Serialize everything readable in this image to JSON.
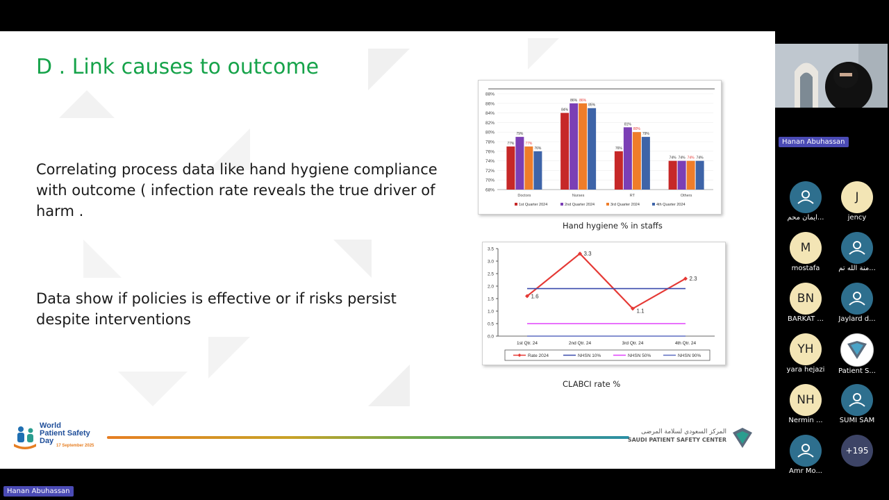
{
  "slide": {
    "title": "D . Link causes to outcome",
    "paragraph1": "Correlating process data like hand hygiene compliance with outcome ( infection rate reveals the true driver of harm .",
    "paragraph2": "Data show if policies is effective or if risks persist despite interventions",
    "caption1": "Hand hygiene % in staffs",
    "caption2": "CLABCI rate %",
    "logo_left": {
      "line1": "World",
      "line2": "Patient Safety",
      "line3": "Day",
      "date": "17 September 2025"
    },
    "logo_right": {
      "arabic": "المركز السعودي لسلامة المرضى",
      "english": "SAUDI PATIENT SAFETY CENTER"
    }
  },
  "chart_data": [
    {
      "type": "bar",
      "categories": [
        "Doctors",
        "Nurses",
        "RT",
        "Others"
      ],
      "series": [
        {
          "name": "1st Quarter 2024",
          "values": [
            77,
            84,
            76,
            74
          ],
          "color": "#c62828"
        },
        {
          "name": "2nd Quarter 2024",
          "values": [
            79,
            86,
            81,
            74
          ],
          "color": "#7b3fb5"
        },
        {
          "name": "3rd Quarter 2024",
          "values": [
            77,
            86,
            80,
            74
          ],
          "color": "#ef7d2a"
        },
        {
          "name": "4th Quarter 2024",
          "values": [
            76,
            85,
            79,
            74
          ],
          "color": "#3e64a8"
        }
      ],
      "data_labels": [
        [
          "77%",
          "84%",
          "76%",
          "74%"
        ],
        [
          "79%",
          "86%",
          "81%",
          "74%"
        ],
        [
          "77%",
          "86%",
          "80%",
          "74%"
        ],
        [
          "76%",
          "85%",
          "79%",
          "74%"
        ]
      ],
      "yticks": [
        "68%",
        "70%",
        "72%",
        "74%",
        "76%",
        "78%",
        "80%",
        "82%",
        "84%",
        "86%",
        "88%"
      ],
      "ylim": [
        68,
        88
      ],
      "legend": "bottom"
    },
    {
      "type": "line",
      "categories": [
        "1st Qtr. 24",
        "2nd Qtr. 24",
        "3rd Qtr. 24",
        "4th Qtr. 24"
      ],
      "series": [
        {
          "name": "Rate 2024",
          "values": [
            1.6,
            3.3,
            1.1,
            2.3
          ],
          "color": "#e53935",
          "labels": [
            "1.6",
            "3.3",
            "1.1",
            "2.3"
          ]
        },
        {
          "name": "NHSN 10%",
          "values": [
            1.9,
            1.9,
            1.9,
            1.9
          ],
          "color": "#3949ab"
        },
        {
          "name": "NHSN 50%",
          "values": [
            0.5,
            0.5,
            0.5,
            0.5
          ],
          "color": "#e040fb"
        },
        {
          "name": "NHSN 90%",
          "values": [
            0.0,
            0.0,
            0.0,
            0.0
          ],
          "color": "#5c6bc0"
        }
      ],
      "yticks": [
        "0.0",
        "0.5",
        "1.0",
        "1.5",
        "2.0",
        "2.5",
        "3.0",
        "3.5"
      ],
      "ylim": [
        0,
        3.5
      ],
      "legend": "bottom"
    }
  ],
  "sidebar": {
    "speaker": "Hanan Abuhassan",
    "bottom_tag": "Hanan Abuhassan",
    "participants": [
      {
        "initials": "",
        "name": "ايمان محم...",
        "bg": "#2e6f8e",
        "icon": "person-icon"
      },
      {
        "initials": "J",
        "name": "jency",
        "bg": "#f3e5b5"
      },
      {
        "initials": "M",
        "name": "mostafa",
        "bg": "#f3e5b5"
      },
      {
        "initials": "",
        "name": "منة الله تم...",
        "bg": "#2e6f8e",
        "icon": "person-icon"
      },
      {
        "initials": "BN",
        "name": "BARKAT ...",
        "bg": "#f3e5b5"
      },
      {
        "initials": "",
        "name": "Jaylard d...",
        "bg": "#2e6f8e",
        "icon": "person-icon"
      },
      {
        "initials": "YH",
        "name": "yara hejazi",
        "bg": "#f3e5b5"
      },
      {
        "initials": "",
        "name": "Patient S...",
        "bg": "#ffffff",
        "icon": "logo-icon"
      },
      {
        "initials": "NH",
        "name": "Nermin ...",
        "bg": "#f3e5b5"
      },
      {
        "initials": "",
        "name": "SUMI SAM",
        "bg": "#2e6f8e",
        "icon": "person-icon"
      },
      {
        "initials": "",
        "name": "Amr Mo...",
        "bg": "#2e6f8e",
        "icon": "person-icon"
      },
      {
        "initials": "+195",
        "name": "",
        "bg": "#3d4466"
      }
    ]
  }
}
